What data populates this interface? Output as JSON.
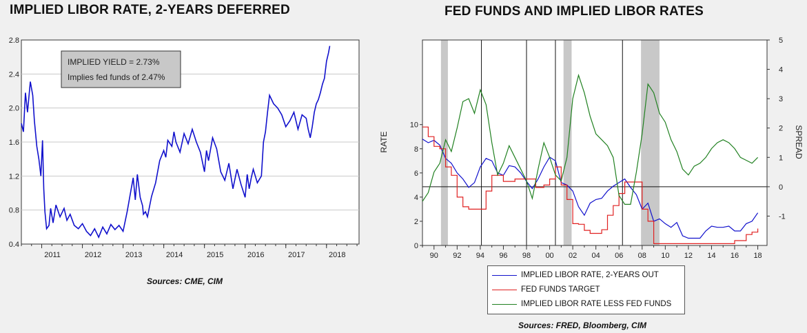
{
  "left_title": "IMPLIED LIBOR RATE, 2-YEARS DEFERRED",
  "right_title": "FED FUNDS AND IMPLIED LIBOR RATES",
  "left_source": "Sources:  CME, CIM",
  "right_source": "Sources:  FRED, Bloomberg, CIM",
  "colors": {
    "implied": "#1010cc",
    "fedfunds": "#e02020",
    "spread": "#208020",
    "recession": "#c8c8c8"
  },
  "chart_data": [
    {
      "type": "line",
      "title": "IMPLIED LIBOR RATE, 2-YEARS DEFERRED",
      "xlabel": "",
      "ylabel": "",
      "xlim": [
        2010.5,
        2018.8
      ],
      "ylim": [
        0.4,
        2.8
      ],
      "ytick_labels": [
        "0.4",
        "0.8",
        "1.2",
        "1.6",
        "2.0",
        "2.4",
        "2.8"
      ],
      "xtick_labels": [
        "2011",
        "2012",
        "2013",
        "2014",
        "2015",
        "2016",
        "2017",
        "2018"
      ],
      "grid": true,
      "annotation": [
        "IMPLIED YIELD = 2.73%",
        "Implies fed funds of 2.47%"
      ],
      "series": [
        {
          "name": "",
          "color": "#1010cc",
          "x": [
            2010.5,
            2010.55,
            2010.6,
            2010.65,
            2010.72,
            2010.78,
            2010.82,
            2010.88,
            2010.93,
            2010.98,
            2011.02,
            2011.05,
            2011.08,
            2011.12,
            2011.18,
            2011.22,
            2011.28,
            2011.35,
            2011.45,
            2011.55,
            2011.62,
            2011.7,
            2011.8,
            2011.9,
            2012.0,
            2012.1,
            2012.2,
            2012.3,
            2012.4,
            2012.5,
            2012.6,
            2012.7,
            2012.8,
            2012.9,
            2013.0,
            2013.1,
            2013.2,
            2013.25,
            2013.3,
            2013.35,
            2013.42,
            2013.48,
            2013.5,
            2013.55,
            2013.6,
            2013.7,
            2013.8,
            2013.9,
            2014.0,
            2014.05,
            2014.1,
            2014.2,
            2014.25,
            2014.3,
            2014.4,
            2014.5,
            2014.6,
            2014.7,
            2014.8,
            2014.9,
            2015.0,
            2015.05,
            2015.1,
            2015.2,
            2015.3,
            2015.4,
            2015.5,
            2015.6,
            2015.7,
            2015.8,
            2015.9,
            2016.0,
            2016.05,
            2016.1,
            2016.15,
            2016.2,
            2016.3,
            2016.4,
            2016.45,
            2016.5,
            2016.55,
            2016.6,
            2016.7,
            2016.8,
            2016.9,
            2017.0,
            2017.1,
            2017.2,
            2017.3,
            2017.4,
            2017.5,
            2017.55,
            2017.6,
            2017.65,
            2017.7,
            2017.75,
            2017.8,
            2017.85,
            2017.9,
            2017.95,
            2018.0,
            2018.05,
            2018.08
          ],
          "y": [
            1.82,
            1.72,
            2.18,
            1.95,
            2.31,
            2.15,
            1.85,
            1.55,
            1.4,
            1.2,
            1.62,
            1.05,
            0.78,
            0.58,
            0.62,
            0.82,
            0.65,
            0.86,
            0.72,
            0.82,
            0.68,
            0.75,
            0.62,
            0.58,
            0.64,
            0.55,
            0.5,
            0.58,
            0.48,
            0.6,
            0.52,
            0.63,
            0.57,
            0.62,
            0.55,
            0.78,
            1.05,
            1.18,
            0.92,
            1.22,
            0.95,
            0.85,
            0.75,
            0.78,
            0.72,
            0.96,
            1.12,
            1.38,
            1.5,
            1.42,
            1.62,
            1.55,
            1.72,
            1.6,
            1.48,
            1.7,
            1.58,
            1.75,
            1.6,
            1.48,
            1.25,
            1.5,
            1.38,
            1.65,
            1.52,
            1.25,
            1.15,
            1.35,
            1.05,
            1.28,
            1.1,
            0.95,
            1.22,
            1.05,
            1.18,
            1.28,
            1.12,
            1.2,
            1.6,
            1.72,
            1.95,
            2.15,
            2.05,
            2.0,
            1.92,
            1.78,
            1.85,
            1.95,
            1.75,
            1.92,
            1.88,
            1.75,
            1.65,
            1.78,
            1.95,
            2.05,
            2.1,
            2.18,
            2.28,
            2.35,
            2.55,
            2.65,
            2.73
          ]
        }
      ]
    },
    {
      "type": "line",
      "title": "FED FUNDS AND IMPLIED LIBOR RATES",
      "xlabel": "",
      "ylabel": "RATE",
      "y2label": "SPREAD",
      "xlim": [
        1989,
        2018.8
      ],
      "ylim": [
        0,
        17
      ],
      "y2lim": [
        -2,
        5
      ],
      "ytick_labels": [
        "0",
        "2",
        "4",
        "6",
        "8",
        "10"
      ],
      "y2tick_labels": [
        "-1",
        "0",
        "1",
        "2",
        "3",
        "4",
        "5"
      ],
      "xtick_labels": [
        "90",
        "92",
        "94",
        "96",
        "98",
        "00",
        "02",
        "04",
        "06",
        "08",
        "10",
        "12",
        "14",
        "16",
        "18"
      ],
      "recessions": [
        [
          1990.6,
          1991.2
        ],
        [
          2001.2,
          2001.9
        ],
        [
          2007.9,
          2009.5
        ]
      ],
      "vertical_lines": [
        1994.1,
        1998.0,
        2000.5,
        2006.3
      ],
      "zero_spread_line": 0,
      "series": [
        {
          "name": "IMPLIED LIBOR RATE, 2-YEARS OUT",
          "axis": "left",
          "color": "#1010cc",
          "x": [
            1989,
            1989.5,
            1990,
            1990.5,
            1991,
            1991.5,
            1992,
            1992.5,
            1993,
            1993.5,
            1994,
            1994.5,
            1995,
            1995.5,
            1996,
            1996.5,
            1997,
            1997.5,
            1998,
            1998.5,
            1999,
            1999.5,
            2000,
            2000.5,
            2001,
            2001.5,
            2002,
            2002.5,
            2003,
            2003.5,
            2004,
            2004.5,
            2005,
            2005.5,
            2006,
            2006.5,
            2007,
            2007.5,
            2008,
            2008.5,
            2009,
            2009.5,
            2010,
            2010.5,
            2011,
            2011.5,
            2012,
            2012.5,
            2013,
            2013.5,
            2014,
            2014.5,
            2015,
            2015.5,
            2016,
            2016.5,
            2017,
            2017.5,
            2018
          ],
          "y": [
            8.8,
            8.5,
            8.7,
            8.3,
            7.2,
            6.8,
            6.0,
            5.5,
            4.8,
            5.2,
            6.5,
            7.2,
            7.0,
            6.0,
            5.8,
            6.6,
            6.5,
            6.0,
            5.3,
            4.7,
            5.5,
            6.5,
            7.3,
            7.0,
            5.2,
            5.0,
            4.5,
            3.2,
            2.5,
            3.5,
            3.8,
            3.9,
            4.5,
            4.9,
            5.2,
            5.5,
            4.8,
            4.2,
            3.0,
            3.5,
            2.0,
            2.2,
            1.8,
            1.5,
            1.9,
            0.8,
            0.6,
            0.6,
            0.6,
            1.2,
            1.6,
            1.5,
            1.5,
            1.6,
            1.2,
            1.2,
            1.8,
            2.0,
            2.7
          ]
        },
        {
          "name": "FED FUNDS TARGET",
          "axis": "left",
          "color": "#e02020",
          "x": [
            1989,
            1989.5,
            1990,
            1990.5,
            1991,
            1991.5,
            1992,
            1992.5,
            1993,
            1994,
            1994.5,
            1995,
            1995.5,
            1996,
            1997,
            1997.5,
            1998,
            1998.8,
            1999,
            1999.5,
            2000,
            2000.5,
            2001,
            2001.5,
            2002,
            2002.5,
            2003,
            2003.5,
            2004,
            2004.5,
            2005,
            2005.5,
            2006,
            2006.5,
            2007,
            2007.5,
            2008,
            2008.5,
            2009,
            2015.9,
            2016,
            2016.9,
            2017,
            2017.5,
            2018
          ],
          "y": [
            9.8,
            9.0,
            8.2,
            8.0,
            6.5,
            5.8,
            4.0,
            3.2,
            3.0,
            3.0,
            4.5,
            5.8,
            5.8,
            5.3,
            5.5,
            5.5,
            5.5,
            4.8,
            4.8,
            5.0,
            5.5,
            6.5,
            5.0,
            3.8,
            1.8,
            1.75,
            1.25,
            1.0,
            1.0,
            1.3,
            2.5,
            3.3,
            4.3,
            5.25,
            5.25,
            5.25,
            3.0,
            2.0,
            0.15,
            0.15,
            0.4,
            0.4,
            0.9,
            1.1,
            1.4
          ]
        },
        {
          "name": "IMPLIED LIBOR RATE LESS FED FUNDS",
          "axis": "right",
          "color": "#208020",
          "x": [
            1989,
            1989.5,
            1990,
            1990.5,
            1991,
            1991.5,
            1992,
            1992.5,
            1993,
            1993.5,
            1994,
            1994.5,
            1995,
            1995.5,
            1996,
            1996.5,
            1997,
            1997.5,
            1998,
            1998.5,
            1999,
            1999.5,
            2000,
            2000.5,
            2001,
            2001.5,
            2002,
            2002.5,
            2003,
            2003.5,
            2004,
            2004.5,
            2005,
            2005.5,
            2006,
            2006.5,
            2007,
            2007.5,
            2008,
            2008.5,
            2009,
            2009.5,
            2010,
            2010.5,
            2011,
            2011.5,
            2012,
            2012.5,
            2013,
            2013.5,
            2014,
            2014.5,
            2015,
            2015.5,
            2016,
            2016.5,
            2017,
            2017.5,
            2018
          ],
          "y": [
            -0.5,
            -0.2,
            0.5,
            0.8,
            1.6,
            1.2,
            2.0,
            2.9,
            3.0,
            2.5,
            3.3,
            2.8,
            1.5,
            0.4,
            0.8,
            1.4,
            1.0,
            0.6,
            0.2,
            -0.4,
            0.6,
            1.5,
            1.0,
            0.4,
            0.2,
            1.0,
            3.0,
            3.8,
            3.2,
            2.4,
            1.8,
            1.6,
            1.4,
            1.0,
            -0.3,
            -0.6,
            -0.6,
            0.5,
            1.8,
            3.5,
            3.2,
            2.5,
            2.2,
            1.6,
            1.2,
            0.6,
            0.4,
            0.7,
            0.8,
            1.0,
            1.3,
            1.5,
            1.6,
            1.5,
            1.3,
            1.0,
            0.9,
            0.8,
            1.0
          ]
        }
      ]
    }
  ]
}
